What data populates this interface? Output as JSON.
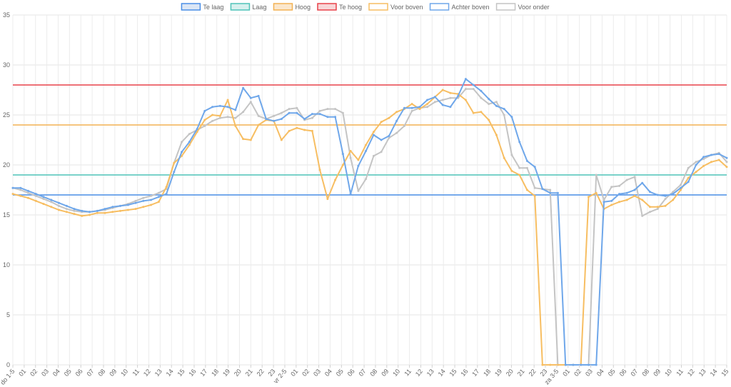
{
  "chart_data": {
    "type": "line",
    "ylim": [
      0,
      35
    ],
    "yticks": [
      0,
      5,
      10,
      15,
      20,
      25,
      30,
      35
    ],
    "xlabels": [
      "do 1-5",
      "01",
      "02",
      "03",
      "04",
      "05",
      "06",
      "07",
      "08",
      "09",
      "10",
      "11",
      "12",
      "13",
      "14",
      "15",
      "16",
      "17",
      "18",
      "19",
      "20",
      "21",
      "22",
      "23",
      "vr 2-5",
      "01",
      "02",
      "03",
      "04",
      "05",
      "06",
      "07",
      "08",
      "09",
      "10",
      "11",
      "12",
      "13",
      "14",
      "15",
      "16",
      "17",
      "18",
      "19",
      "20",
      "21",
      "22",
      "23",
      "za 3-5",
      "01",
      "02",
      "03",
      "04",
      "05",
      "06",
      "07",
      "08",
      "09",
      "10",
      "11",
      "12",
      "13",
      "14",
      "15"
    ],
    "grid": true,
    "legend_position": "top",
    "legend": [
      {
        "label": "Te laag",
        "color": "#4a8ee6",
        "fill": "#dbe6f5"
      },
      {
        "label": "Laag",
        "color": "#4fc3b8",
        "fill": "#d6f0ee"
      },
      {
        "label": "Hoog",
        "color": "#f3b253",
        "fill": "#fbe7cc"
      },
      {
        "label": "Te hoog",
        "color": "#e8424a",
        "fill": "#f8d6d7"
      },
      {
        "label": "Voor boven",
        "color": "#f7be62",
        "fill": "#ffffff"
      },
      {
        "label": "Achter boven",
        "color": "#6fa7ea",
        "fill": "#ffffff"
      },
      {
        "label": "Voor onder",
        "color": "#c4c4c4",
        "fill": "#ffffff"
      }
    ],
    "thresholds": [
      {
        "name": "Te laag",
        "value": 17,
        "color": "#4a8ee6"
      },
      {
        "name": "Laag",
        "value": 19,
        "color": "#4fc3b8"
      },
      {
        "name": "Hoog",
        "value": 24,
        "color": "#f3b253"
      },
      {
        "name": "Te hoog",
        "value": 28,
        "color": "#e8424a"
      }
    ],
    "series": [
      {
        "name": "Voor onder",
        "color": "#c4c4c4",
        "points": [
          [
            0,
            17.7
          ],
          [
            1,
            17.5
          ],
          [
            2,
            17.2
          ],
          [
            3,
            16.9
          ],
          [
            4,
            16.6
          ],
          [
            5,
            16.3
          ],
          [
            6,
            15.9
          ],
          [
            7,
            15.6
          ],
          [
            8,
            15.4
          ],
          [
            9,
            15.3
          ],
          [
            10,
            15.3
          ],
          [
            11,
            15.4
          ],
          [
            12,
            15.5
          ],
          [
            13,
            15.7
          ],
          [
            14,
            15.9
          ],
          [
            15,
            16.1
          ],
          [
            16,
            16.4
          ],
          [
            17,
            16.7
          ],
          [
            18,
            16.9
          ],
          [
            19,
            17.2
          ],
          [
            20,
            17.6
          ],
          [
            21,
            20.2
          ],
          [
            22,
            22.3
          ],
          [
            23,
            23.1
          ],
          [
            24,
            23.5
          ],
          [
            25,
            23.9
          ],
          [
            26,
            24.4
          ],
          [
            27,
            24.7
          ],
          [
            28,
            24.8
          ],
          [
            29,
            24.7
          ],
          [
            30,
            25.3
          ],
          [
            31,
            26.3
          ],
          [
            32,
            24.9
          ],
          [
            33,
            24.6
          ],
          [
            34,
            24.9
          ],
          [
            35,
            25.2
          ],
          [
            36,
            25.6
          ],
          [
            37,
            25.7
          ],
          [
            38,
            24.5
          ],
          [
            39,
            24.7
          ],
          [
            40,
            25.4
          ],
          [
            41,
            25.6
          ],
          [
            42,
            25.6
          ],
          [
            43,
            25.2
          ],
          [
            44,
            20.7
          ],
          [
            45,
            17.4
          ],
          [
            46,
            18.6
          ],
          [
            47,
            20.9
          ],
          [
            48,
            21.3
          ],
          [
            49,
            22.7
          ],
          [
            50,
            23.2
          ],
          [
            51,
            23.9
          ],
          [
            52,
            25.4
          ],
          [
            53,
            25.7
          ],
          [
            54,
            25.8
          ],
          [
            55,
            26.3
          ],
          [
            56,
            26.5
          ],
          [
            57,
            26.7
          ],
          [
            58,
            26.7
          ],
          [
            59,
            27.6
          ],
          [
            60,
            27.6
          ],
          [
            61,
            26.7
          ],
          [
            62,
            26.1
          ],
          [
            63,
            26.3
          ],
          [
            64,
            25.0
          ],
          [
            65,
            21.0
          ],
          [
            66,
            19.7
          ],
          [
            67,
            19.7
          ],
          [
            68,
            17.7
          ],
          [
            69,
            17.6
          ],
          [
            70,
            17.5
          ],
          [
            71,
            0
          ],
          [
            72,
            0
          ],
          [
            73,
            0
          ],
          [
            74,
            0
          ],
          [
            75,
            0
          ],
          [
            76,
            19.0
          ],
          [
            77,
            16.5
          ],
          [
            78,
            17.8
          ],
          [
            79,
            17.9
          ],
          [
            80,
            18.5
          ],
          [
            81,
            18.8
          ],
          [
            82,
            14.9
          ],
          [
            83,
            15.3
          ],
          [
            84,
            15.6
          ],
          [
            85,
            16.6
          ],
          [
            86,
            17.3
          ],
          [
            87,
            18.0
          ],
          [
            88,
            19.7
          ],
          [
            89,
            20.3
          ],
          [
            90,
            20.6
          ],
          [
            91,
            21.0
          ],
          [
            92,
            21.2
          ],
          [
            93,
            20.3
          ]
        ]
      },
      {
        "name": "Voor boven",
        "color": "#f7be62",
        "points": [
          [
            0,
            17.1
          ],
          [
            1,
            16.9
          ],
          [
            2,
            16.7
          ],
          [
            3,
            16.4
          ],
          [
            4,
            16.1
          ],
          [
            5,
            15.8
          ],
          [
            6,
            15.5
          ],
          [
            7,
            15.3
          ],
          [
            8,
            15.1
          ],
          [
            9,
            14.9
          ],
          [
            10,
            15.0
          ],
          [
            11,
            15.2
          ],
          [
            12,
            15.2
          ],
          [
            13,
            15.3
          ],
          [
            14,
            15.4
          ],
          [
            15,
            15.5
          ],
          [
            16,
            15.6
          ],
          [
            17,
            15.8
          ],
          [
            18,
            16.0
          ],
          [
            19,
            16.3
          ],
          [
            20,
            17.8
          ],
          [
            21,
            20.2
          ],
          [
            22,
            20.9
          ],
          [
            23,
            22.0
          ],
          [
            24,
            23.3
          ],
          [
            25,
            24.5
          ],
          [
            26,
            25.0
          ],
          [
            27,
            24.9
          ],
          [
            28,
            26.5
          ],
          [
            29,
            23.9
          ],
          [
            30,
            22.6
          ],
          [
            31,
            22.5
          ],
          [
            32,
            24.0
          ],
          [
            33,
            24.5
          ],
          [
            34,
            24.4
          ],
          [
            35,
            22.5
          ],
          [
            36,
            23.4
          ],
          [
            37,
            23.7
          ],
          [
            38,
            23.5
          ],
          [
            39,
            23.4
          ],
          [
            40,
            19.5
          ],
          [
            41,
            16.6
          ],
          [
            42,
            18.5
          ],
          [
            43,
            20.0
          ],
          [
            44,
            21.4
          ],
          [
            45,
            20.5
          ],
          [
            46,
            22.0
          ],
          [
            47,
            23.3
          ],
          [
            48,
            24.3
          ],
          [
            49,
            24.7
          ],
          [
            50,
            25.3
          ],
          [
            51,
            25.6
          ],
          [
            52,
            26.1
          ],
          [
            53,
            25.6
          ],
          [
            54,
            26.1
          ],
          [
            55,
            26.8
          ],
          [
            56,
            27.5
          ],
          [
            57,
            27.2
          ],
          [
            58,
            27.1
          ],
          [
            59,
            26.5
          ],
          [
            60,
            25.2
          ],
          [
            61,
            25.3
          ],
          [
            62,
            24.5
          ],
          [
            63,
            23.0
          ],
          [
            64,
            20.7
          ],
          [
            65,
            19.4
          ],
          [
            66,
            19.0
          ],
          [
            67,
            17.5
          ],
          [
            68,
            16.9
          ],
          [
            69,
            0
          ],
          [
            70,
            0
          ],
          [
            71,
            0
          ],
          [
            72,
            0
          ],
          [
            73,
            0
          ],
          [
            74,
            0
          ],
          [
            75,
            16.8
          ],
          [
            76,
            17.2
          ],
          [
            77,
            15.6
          ],
          [
            78,
            16.0
          ],
          [
            79,
            16.3
          ],
          [
            80,
            16.5
          ],
          [
            81,
            16.9
          ],
          [
            82,
            16.5
          ],
          [
            83,
            15.8
          ],
          [
            84,
            15.8
          ],
          [
            85,
            15.9
          ],
          [
            86,
            16.5
          ],
          [
            87,
            17.5
          ],
          [
            88,
            18.7
          ],
          [
            89,
            19.3
          ],
          [
            90,
            19.9
          ],
          [
            91,
            20.3
          ],
          [
            92,
            20.5
          ],
          [
            93,
            19.8
          ]
        ]
      },
      {
        "name": "Achter boven",
        "color": "#6fa7ea",
        "points": [
          [
            0,
            17.7
          ],
          [
            1,
            17.7
          ],
          [
            2,
            17.4
          ],
          [
            3,
            17.1
          ],
          [
            4,
            16.8
          ],
          [
            5,
            16.5
          ],
          [
            6,
            16.2
          ],
          [
            7,
            15.9
          ],
          [
            8,
            15.6
          ],
          [
            9,
            15.4
          ],
          [
            10,
            15.3
          ],
          [
            11,
            15.4
          ],
          [
            12,
            15.6
          ],
          [
            13,
            15.8
          ],
          [
            14,
            15.9
          ],
          [
            15,
            16.0
          ],
          [
            16,
            16.2
          ],
          [
            17,
            16.4
          ],
          [
            18,
            16.5
          ],
          [
            19,
            16.8
          ],
          [
            20,
            17.1
          ],
          [
            21,
            19.3
          ],
          [
            22,
            21.3
          ],
          [
            23,
            22.3
          ],
          [
            24,
            23.6
          ],
          [
            25,
            25.4
          ],
          [
            26,
            25.8
          ],
          [
            27,
            25.9
          ],
          [
            28,
            25.8
          ],
          [
            29,
            25.5
          ],
          [
            30,
            27.7
          ],
          [
            31,
            26.7
          ],
          [
            32,
            26.9
          ],
          [
            33,
            24.6
          ],
          [
            34,
            24.4
          ],
          [
            35,
            24.6
          ],
          [
            36,
            25.2
          ],
          [
            37,
            25.2
          ],
          [
            38,
            24.6
          ],
          [
            39,
            25.1
          ],
          [
            40,
            25.1
          ],
          [
            41,
            24.8
          ],
          [
            42,
            24.8
          ],
          [
            43,
            21.1
          ],
          [
            44,
            17.1
          ],
          [
            45,
            19.9
          ],
          [
            46,
            21.4
          ],
          [
            47,
            23.0
          ],
          [
            48,
            22.5
          ],
          [
            49,
            22.9
          ],
          [
            50,
            24.4
          ],
          [
            51,
            25.7
          ],
          [
            52,
            25.7
          ],
          [
            53,
            25.8
          ],
          [
            54,
            26.5
          ],
          [
            55,
            26.8
          ],
          [
            56,
            26.0
          ],
          [
            57,
            25.8
          ],
          [
            58,
            26.9
          ],
          [
            59,
            28.6
          ],
          [
            60,
            28.0
          ],
          [
            61,
            27.4
          ],
          [
            62,
            26.6
          ],
          [
            63,
            25.9
          ],
          [
            64,
            25.6
          ],
          [
            65,
            24.8
          ],
          [
            66,
            22.3
          ],
          [
            67,
            20.4
          ],
          [
            68,
            19.8
          ],
          [
            69,
            17.6
          ],
          [
            70,
            17.2
          ],
          [
            71,
            17.2
          ],
          [
            72,
            0
          ],
          [
            73,
            0
          ],
          [
            74,
            0
          ],
          [
            75,
            0
          ],
          [
            76,
            0
          ],
          [
            77,
            16.3
          ],
          [
            78,
            16.4
          ],
          [
            79,
            17.1
          ],
          [
            80,
            17.2
          ],
          [
            81,
            17.5
          ],
          [
            82,
            18.2
          ],
          [
            83,
            17.3
          ],
          [
            84,
            17.0
          ],
          [
            85,
            16.9
          ],
          [
            86,
            17.1
          ],
          [
            87,
            17.7
          ],
          [
            88,
            18.3
          ],
          [
            89,
            20.0
          ],
          [
            90,
            20.8
          ],
          [
            91,
            21.0
          ],
          [
            92,
            21.1
          ],
          [
            93,
            20.7
          ]
        ]
      }
    ]
  }
}
